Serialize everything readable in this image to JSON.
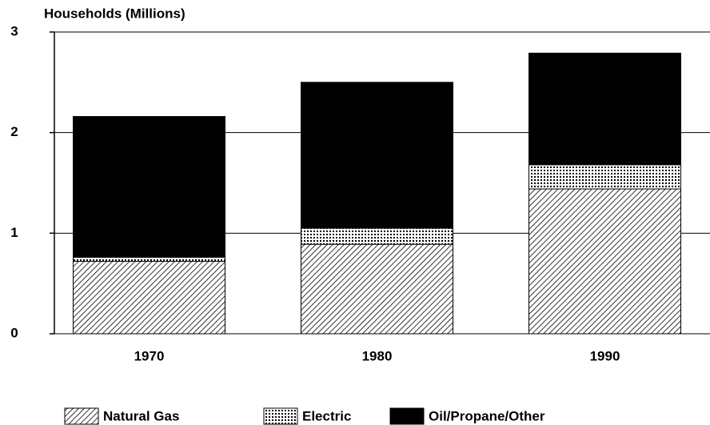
{
  "chart_data": {
    "type": "stacked_bar",
    "y_label": "Households (Millions)",
    "categories": [
      "1970",
      "1980",
      "1990"
    ],
    "series": [
      {
        "name": "Natural Gas",
        "color": "#000000",
        "values": [
          0.72,
          0.89,
          1.44
        ]
      },
      {
        "name": "Electric",
        "color": "#000000",
        "values": [
          0.04,
          0.16,
          0.24
        ]
      },
      {
        "name": "Oil/Propane/Other",
        "color": "#000000",
        "values": [
          1.4,
          1.45,
          1.11
        ]
      }
    ],
    "ylim": [
      0,
      3
    ],
    "yticks": [
      0,
      1,
      2,
      3
    ],
    "grid": true
  }
}
